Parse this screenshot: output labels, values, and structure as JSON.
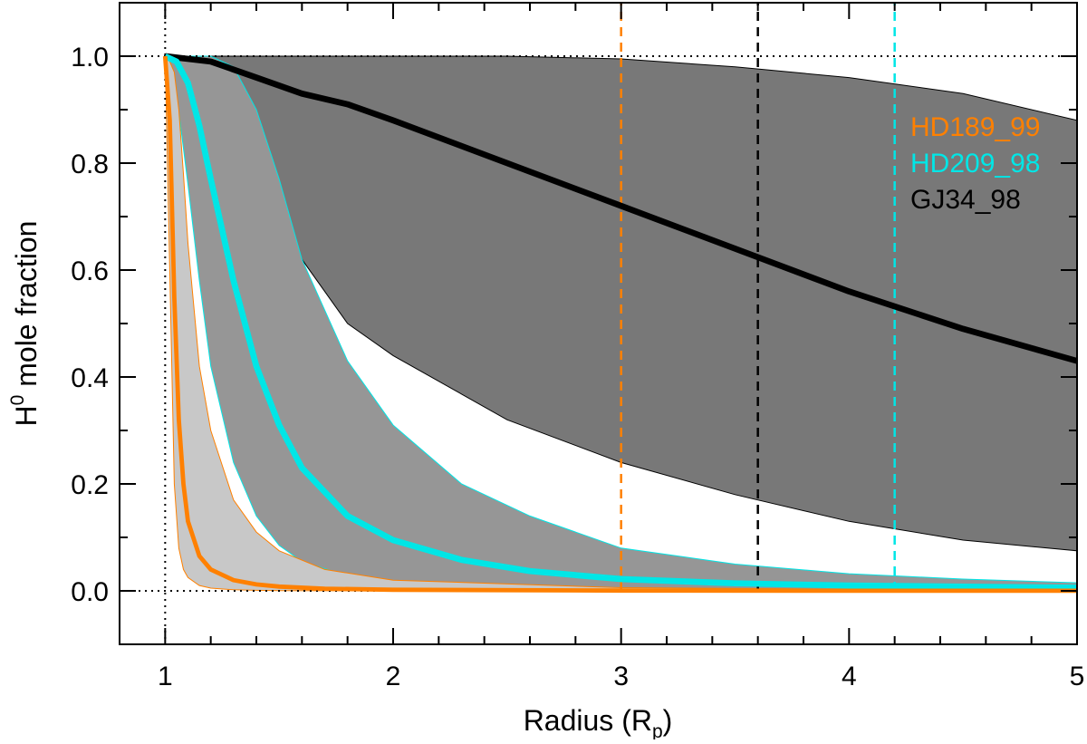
{
  "chart_data": {
    "type": "line",
    "xlabel": "Radius (R",
    "xlabel_sub": "p",
    "xlabel_close": ")",
    "ylabel": "H",
    "ylabel_sup": "0",
    "ylabel_rest": " mole fraction",
    "xlim": [
      0.8,
      5.0
    ],
    "ylim": [
      -0.1,
      1.1
    ],
    "x_ticks": [
      1,
      2,
      3,
      4,
      5
    ],
    "x_tick_labels": [
      "1",
      "2",
      "3",
      "4",
      "5"
    ],
    "y_ticks": [
      0.0,
      0.2,
      0.4,
      0.6,
      0.8,
      1.0
    ],
    "y_tick_labels": [
      "0.0",
      "0.2",
      "0.4",
      "0.6",
      "0.8",
      "1.0"
    ],
    "grid": false,
    "legend_position": "top-right",
    "reference_lines": {
      "horizontal": [
        0.0,
        1.0
      ],
      "vertical": [
        1.0
      ],
      "style": "dotted",
      "color": "#000000"
    },
    "series": [
      {
        "name": "HD189_99",
        "color": "#ff8000",
        "band_color": "#c8c8c8",
        "marker_radius": 3.0,
        "x": [
          1.0,
          1.02,
          1.04,
          1.06,
          1.08,
          1.1,
          1.15,
          1.2,
          1.3,
          1.4,
          1.5,
          1.7,
          2.0,
          3.0,
          4.0,
          5.0
        ],
        "median": [
          1.0,
          0.88,
          0.55,
          0.32,
          0.2,
          0.13,
          0.065,
          0.04,
          0.02,
          0.012,
          0.008,
          0.004,
          0.002,
          0.0005,
          0.0002,
          0.0001
        ],
        "upper": [
          1.0,
          0.99,
          0.97,
          0.9,
          0.78,
          0.65,
          0.42,
          0.3,
          0.17,
          0.11,
          0.075,
          0.04,
          0.02,
          0.006,
          0.003,
          0.002
        ],
        "lower": [
          1.0,
          0.6,
          0.2,
          0.08,
          0.04,
          0.025,
          0.01,
          0.005,
          0.002,
          0.001,
          0.0005,
          0.0002,
          0.0001,
          2e-05,
          1e-05,
          5e-06
        ]
      },
      {
        "name": "HD209_98",
        "color": "#00e6e6",
        "band_color": "#969696",
        "marker_radius": 4.2,
        "x": [
          1.0,
          1.05,
          1.1,
          1.15,
          1.2,
          1.3,
          1.4,
          1.5,
          1.6,
          1.8,
          2.0,
          2.3,
          2.6,
          3.0,
          3.5,
          4.0,
          4.5,
          5.0
        ],
        "median": [
          1.0,
          0.99,
          0.95,
          0.87,
          0.77,
          0.58,
          0.42,
          0.31,
          0.23,
          0.14,
          0.095,
          0.058,
          0.037,
          0.022,
          0.014,
          0.01,
          0.008,
          0.006
        ],
        "upper": [
          1.0,
          1.0,
          1.0,
          1.0,
          1.0,
          0.98,
          0.9,
          0.77,
          0.62,
          0.43,
          0.31,
          0.2,
          0.14,
          0.08,
          0.05,
          0.032,
          0.022,
          0.015
        ],
        "lower": [
          1.0,
          0.93,
          0.76,
          0.58,
          0.42,
          0.24,
          0.14,
          0.085,
          0.055,
          0.028,
          0.017,
          0.009,
          0.006,
          0.003,
          0.002,
          0.0015,
          0.001,
          0.0008
        ]
      },
      {
        "name": "GJ34_98",
        "color": "#000000",
        "band_color": "#787878",
        "marker_radius": 4.2,
        "x": [
          1.0,
          1.2,
          1.4,
          1.6,
          1.8,
          2.0,
          2.5,
          3.0,
          3.5,
          4.0,
          4.5,
          5.0
        ],
        "median": [
          1.0,
          0.99,
          0.96,
          0.93,
          0.91,
          0.88,
          0.8,
          0.72,
          0.64,
          0.56,
          0.49,
          0.43
        ],
        "upper": [
          1.0,
          1.0,
          1.0,
          1.0,
          1.0,
          1.0,
          1.0,
          0.995,
          0.98,
          0.96,
          0.93,
          0.88
        ],
        "lower": [
          1.0,
          0.9,
          0.78,
          0.62,
          0.5,
          0.44,
          0.32,
          0.24,
          0.18,
          0.13,
          0.095,
          0.075
        ]
      }
    ],
    "vertical_markers": [
      {
        "x": 3.0,
        "color": "#ff8000",
        "style": "dashed"
      },
      {
        "x": 3.6,
        "color": "#000000",
        "style": "dashed"
      },
      {
        "x": 4.2,
        "color": "#00e6e6",
        "style": "dashed"
      }
    ]
  }
}
